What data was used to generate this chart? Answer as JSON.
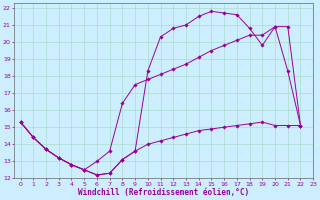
{
  "xlabel": "Windchill (Refroidissement éolien,°C)",
  "background_color": "#cceeff",
  "grid_color": "#aaddcc",
  "line_color": "#990099",
  "xlim": [
    -0.5,
    23
  ],
  "ylim": [
    12,
    22.3
  ],
  "xticks": [
    0,
    1,
    2,
    3,
    4,
    5,
    6,
    7,
    8,
    9,
    10,
    11,
    12,
    13,
    14,
    15,
    16,
    17,
    18,
    19,
    20,
    21,
    22,
    23
  ],
  "yticks": [
    12,
    13,
    14,
    15,
    16,
    17,
    18,
    19,
    20,
    21,
    22
  ],
  "series": [
    [
      15.3,
      14.4,
      13.7,
      13.2,
      12.8,
      12.5,
      12.2,
      12.3,
      13.1,
      13.6,
      18.3,
      20.3,
      20.8,
      21.0,
      21.5,
      21.8,
      21.7,
      21.6,
      20.8,
      19.8,
      20.9,
      18.3,
      15.1
    ],
    [
      15.3,
      14.4,
      13.7,
      13.2,
      12.8,
      12.5,
      13.0,
      13.6,
      16.4,
      17.5,
      17.8,
      18.1,
      18.4,
      18.7,
      19.1,
      19.5,
      19.8,
      20.1,
      20.4,
      20.4,
      20.9,
      20.9,
      15.1
    ],
    [
      15.3,
      14.4,
      13.7,
      13.2,
      12.8,
      12.5,
      12.2,
      12.3,
      13.1,
      13.6,
      14.0,
      14.2,
      14.4,
      14.6,
      14.8,
      14.9,
      15.0,
      15.1,
      15.2,
      15.3,
      15.1,
      15.1,
      15.1
    ]
  ],
  "marker": "D",
  "markersize": 1.8,
  "linewidth": 0.7,
  "tick_fontsize": 4.5,
  "xlabel_fontsize": 5.5
}
